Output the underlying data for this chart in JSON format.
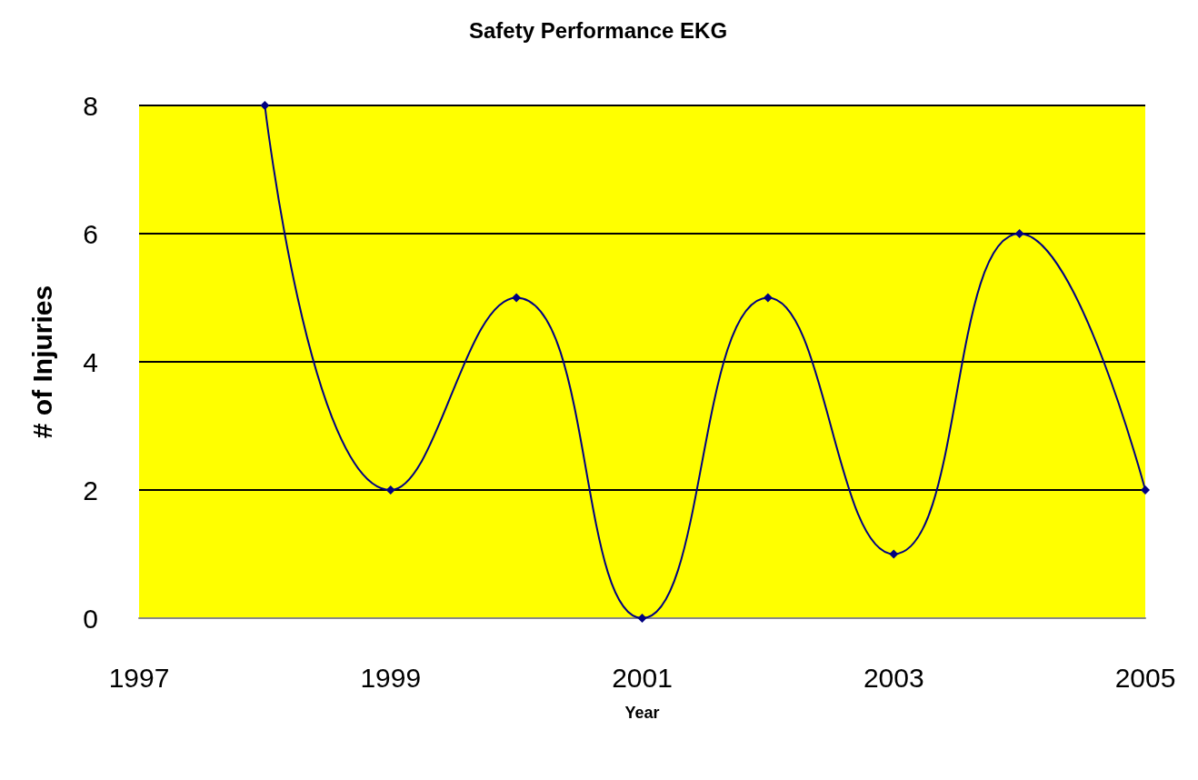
{
  "chart_data": {
    "type": "line",
    "title": "Safety Performance EKG",
    "xlabel": "Year",
    "ylabel": "# of Injuries",
    "x": [
      1998,
      1999,
      2000,
      2001,
      2002,
      2003,
      2004,
      2005
    ],
    "series": [
      {
        "color": "#000080",
        "values": [
          8,
          2,
          5,
          0,
          5,
          1,
          6,
          2
        ]
      }
    ],
    "xlim": [
      1997,
      2005
    ],
    "xticks": [
      1997,
      1999,
      2001,
      2003,
      2005
    ],
    "ylim": [
      0,
      8
    ],
    "yticks": [
      0,
      2,
      4,
      6,
      8
    ],
    "grid": "y",
    "marker": "diamond",
    "line_style": "solid"
  }
}
